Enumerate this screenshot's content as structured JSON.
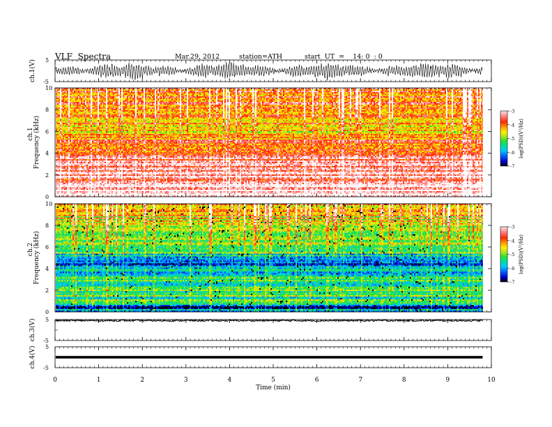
{
  "header": {
    "title": "VLF  Spectra",
    "date": "Mar.29, 2012",
    "station": "station=ATH",
    "start": "start  UT  =    14: 0  : 0"
  },
  "chart_data": [
    {
      "type": "line",
      "panel": "ch1-waveform",
      "ylabel": "ch.1(V)",
      "yticks": [
        "5",
        "-5"
      ],
      "ylim": [
        -5,
        5
      ],
      "xlim": [
        0,
        10
      ],
      "data_end_min": 9.8,
      "description_of_values": "dense oscillating waveform roughly between -3 and +3 V"
    },
    {
      "type": "heatmap",
      "panel": "ch1-spectrogram",
      "ylabel": "Frequency  (kHz)",
      "channel_label": "ch.1",
      "yticks": [
        "0",
        "2",
        "4",
        "6",
        "8",
        "10"
      ],
      "ylim": [
        0,
        10
      ],
      "xlim": [
        0,
        10
      ],
      "colorbar": {
        "label": "log(PSD)(V²/Hz)",
        "ticks": [
          "-3",
          "-4",
          "-5",
          "-6",
          "-7"
        ],
        "range": [
          -7,
          -3
        ]
      },
      "band_profile": [
        {
          "f": 0.0,
          "psd": -3.4
        },
        {
          "f": 0.5,
          "psd": -3.2
        },
        {
          "f": 1.0,
          "psd": -3.5
        },
        {
          "f": 2.0,
          "psd": -3.6
        },
        {
          "f": 3.0,
          "psd": -3.7
        },
        {
          "f": 4.0,
          "psd": -3.9
        },
        {
          "f": 5.0,
          "psd": -4.0
        },
        {
          "f": 5.5,
          "psd": -4.5
        },
        {
          "f": 6.0,
          "psd": -4.8
        },
        {
          "f": 7.0,
          "psd": -4.4
        },
        {
          "f": 8.0,
          "psd": -4.2
        },
        {
          "f": 9.0,
          "psd": -4.0
        },
        {
          "f": 10.0,
          "psd": -4.0
        }
      ]
    },
    {
      "type": "heatmap",
      "panel": "ch2-spectrogram",
      "ylabel": "Frequency  (kHz)",
      "channel_label": "ch.2",
      "yticks": [
        "0",
        "2",
        "4",
        "6",
        "8",
        "10"
      ],
      "ylim": [
        0,
        10
      ],
      "xlim": [
        0,
        10
      ],
      "colorbar": {
        "label": "log(PSD)(V²/Hz)",
        "ticks": [
          "-3",
          "-4",
          "-5",
          "-6",
          "-7"
        ],
        "range": [
          -7,
          -3
        ]
      },
      "band_profile": [
        {
          "f": 0.0,
          "psd": -6.2
        },
        {
          "f": 0.5,
          "psd": -6.5
        },
        {
          "f": 1.0,
          "psd": -5.4
        },
        {
          "f": 2.0,
          "psd": -5.3
        },
        {
          "f": 3.0,
          "psd": -5.5
        },
        {
          "f": 4.0,
          "psd": -6.1
        },
        {
          "f": 4.5,
          "psd": -6.3
        },
        {
          "f": 5.0,
          "psd": -5.8
        },
        {
          "f": 6.0,
          "psd": -5.1
        },
        {
          "f": 7.0,
          "psd": -5.0
        },
        {
          "f": 8.0,
          "psd": -4.8
        },
        {
          "f": 9.0,
          "psd": -4.6
        },
        {
          "f": 10.0,
          "psd": -4.6
        }
      ]
    },
    {
      "type": "line",
      "panel": "ch3-waveform",
      "ylabel": "ch.3(V)",
      "yticks": [
        "5",
        "-5"
      ],
      "ylim": [
        -5,
        5
      ],
      "xlim": [
        0,
        10
      ],
      "data_end_min": 9.8,
      "description_of_values": "nearly flat trace near +5 V"
    },
    {
      "type": "line",
      "panel": "ch4-waveform",
      "ylabel": "ch.4(V)",
      "yticks": [
        "5",
        "-5"
      ],
      "ylim": [
        -5,
        5
      ],
      "xlim": [
        0,
        10
      ],
      "data_end_min": 9.8,
      "description_of_values": "flat thick trace near 0 V"
    }
  ],
  "xaxis": {
    "label": "Time  (min)",
    "ticks": [
      "0",
      "1",
      "2",
      "3",
      "4",
      "5",
      "6",
      "7",
      "8",
      "9",
      "10"
    ]
  },
  "colors": {
    "colormap": [
      "#000000",
      "#0000c8",
      "#0060ff",
      "#00c8ff",
      "#00e08c",
      "#30e030",
      "#b4e61e",
      "#ffee00",
      "#ffa000",
      "#ff2800",
      "#ff8080",
      "#ffdcdc",
      "#ffffff"
    ]
  }
}
